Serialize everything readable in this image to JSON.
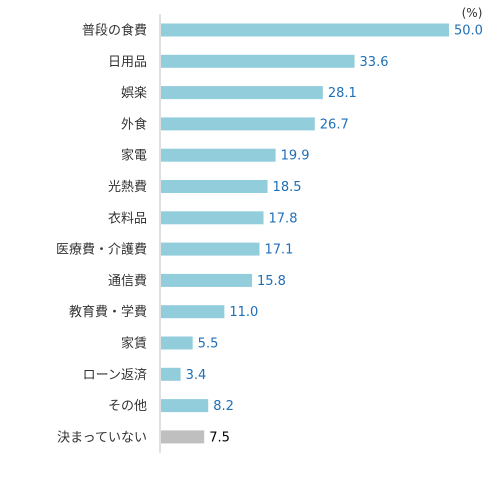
{
  "chart_data": {
    "type": "bar",
    "orientation": "horizontal",
    "unit_label": "(%)",
    "categories": [
      "普段の食費",
      "日用品",
      "娯楽",
      "外食",
      "家電",
      "光熱費",
      "衣料品",
      "医療費・介護費",
      "通信費",
      "教育費・学費",
      "家賃",
      "ローン返済",
      "その他",
      "決まっていない"
    ],
    "values": [
      50.0,
      33.6,
      28.1,
      26.7,
      19.9,
      18.5,
      17.8,
      17.1,
      15.8,
      11.0,
      5.5,
      3.4,
      8.2,
      7.5
    ],
    "value_labels": [
      "50.0",
      "33.6",
      "28.1",
      "26.7",
      "19.9",
      "18.5",
      "17.8",
      "17.1",
      "15.8",
      "11.0",
      "5.5",
      "3.4",
      "8.2",
      "7.5"
    ],
    "xlim": [
      0,
      50
    ],
    "grid": false,
    "colors": {
      "bar": "#92CDDC",
      "bar_highlight": "#BFBFBF",
      "value_text": "#1F6FB8",
      "value_text_highlight": "#000000",
      "axis": "#BFBFBF"
    }
  }
}
